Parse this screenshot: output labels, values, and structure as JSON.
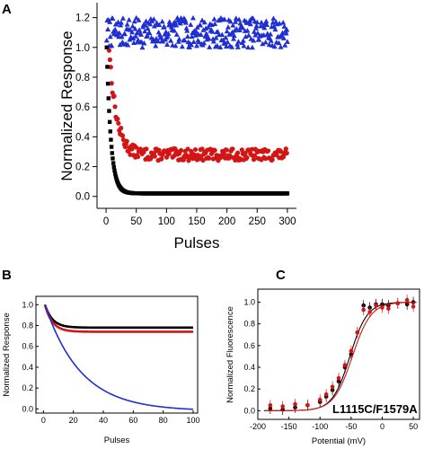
{
  "chart_data": [
    {
      "panel": "A",
      "type": "scatter",
      "xlabel": "Pulses",
      "ylabel": "Normalized Response",
      "xlim": [
        -15,
        315
      ],
      "ylim": [
        -0.08,
        1.3
      ],
      "xticks": [
        0,
        50,
        100,
        150,
        200,
        250,
        300
      ],
      "yticks": [
        0.0,
        0.2,
        0.4,
        0.6,
        0.8,
        1.0,
        1.2
      ],
      "series": [
        {
          "color": "#1f2fd0",
          "marker": "triangle",
          "model": "noise",
          "level": 1.1,
          "spread": 0.1,
          "x_start": 1,
          "x_end": 300,
          "x_step": 1,
          "seed": 7
        },
        {
          "color": "#d41515",
          "marker": "circle",
          "model": "exp_decay",
          "start": 1.0,
          "plateau": 0.28,
          "tau": 12,
          "noise": 0.04,
          "x_start": 5,
          "x_end": 300,
          "x_step": 1.4,
          "seed": 13
        },
        {
          "color": "#000000",
          "marker": "square",
          "model": "exp_decay",
          "start": 1.0,
          "plateau": 0.02,
          "tau": 7,
          "noise": 0.0,
          "x_start": 1,
          "x_end": 300,
          "x_step": 1,
          "seed": 3
        }
      ]
    },
    {
      "panel": "B",
      "type": "line",
      "xlabel": "Pulses",
      "ylabel": "Normalized Response",
      "xlim": [
        -5,
        103
      ],
      "ylim": [
        -0.04,
        1.08
      ],
      "xticks": [
        0,
        20,
        40,
        60,
        80,
        100
      ],
      "yticks": [
        0.0,
        0.2,
        0.4,
        0.6,
        0.8,
        1.0
      ],
      "series": [
        {
          "color": "#000000",
          "model": "exp_decay",
          "start": 1.0,
          "plateau": 0.78,
          "tau": 5,
          "x_start": 1,
          "x_end": 100
        },
        {
          "color": "#d41515",
          "model": "exp_decay",
          "start": 1.0,
          "plateau": 0.74,
          "tau": 5,
          "x_start": 1,
          "x_end": 100
        },
        {
          "color": "#1f2fd0",
          "model": "exp_decay",
          "start": 1.0,
          "plateau": -0.02,
          "tau": 24,
          "x_start": 1,
          "x_end": 100
        }
      ]
    },
    {
      "panel": "C",
      "type": "scatter",
      "xlabel": "Potential (mV)",
      "ylabel": "Normalized Fluorescence",
      "annotation": "L1115C/F1579A",
      "xlim": [
        -200,
        60
      ],
      "ylim": [
        -0.08,
        1.12
      ],
      "xticks": [
        -200,
        -150,
        -100,
        -50,
        0,
        50
      ],
      "yticks": [
        0.0,
        0.2,
        0.4,
        0.6,
        0.8,
        1.0
      ],
      "series": [
        {
          "color": "#000000",
          "v_half": -52,
          "slope": 14,
          "x": [
            -180,
            -160,
            -140,
            -120,
            -100,
            -90,
            -80,
            -70,
            -60,
            -50,
            -40,
            -30,
            -20,
            -10,
            0,
            10,
            25,
            40,
            50
          ],
          "y": [
            0.02,
            0.01,
            0.03,
            0.05,
            0.08,
            0.13,
            0.19,
            0.27,
            0.4,
            0.52,
            0.72,
            0.97,
            0.95,
            0.98,
            0.98,
            0.97,
            0.99,
            0.98,
            1.0
          ]
        },
        {
          "color": "#d41515",
          "v_half": -48,
          "slope": 15,
          "x": [
            -180,
            -160,
            -140,
            -120,
            -100,
            -90,
            -80,
            -70,
            -60,
            -50,
            -40,
            -30,
            -20,
            -10,
            0,
            10,
            25,
            40,
            50
          ],
          "y": [
            0.05,
            0.04,
            0.06,
            0.05,
            0.1,
            0.15,
            0.22,
            0.3,
            0.42,
            0.55,
            0.72,
            0.93,
            0.91,
            0.97,
            0.95,
            0.94,
            0.99,
            1.02,
            0.96
          ]
        }
      ]
    }
  ]
}
